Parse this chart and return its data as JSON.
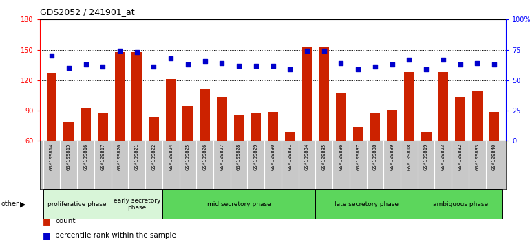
{
  "title": "GDS2052 / 241901_at",
  "samples": [
    "GSM109814",
    "GSM109815",
    "GSM109816",
    "GSM109817",
    "GSM109820",
    "GSM109821",
    "GSM109822",
    "GSM109824",
    "GSM109825",
    "GSM109826",
    "GSM109827",
    "GSM109828",
    "GSM109829",
    "GSM109830",
    "GSM109831",
    "GSM109834",
    "GSM109835",
    "GSM109836",
    "GSM109837",
    "GSM109838",
    "GSM109839",
    "GSM109818",
    "GSM109819",
    "GSM109823",
    "GSM109832",
    "GSM109833",
    "GSM109840"
  ],
  "counts": [
    127,
    79,
    92,
    87,
    148,
    148,
    84,
    121,
    95,
    112,
    103,
    86,
    88,
    89,
    69,
    153,
    153,
    108,
    74,
    87,
    91,
    128,
    69,
    128,
    103,
    110,
    89
  ],
  "percentiles": [
    70,
    60,
    63,
    61,
    74,
    73,
    61,
    68,
    63,
    66,
    64,
    62,
    62,
    62,
    59,
    74,
    74,
    64,
    59,
    61,
    63,
    67,
    59,
    67,
    63,
    64,
    63
  ],
  "phases": [
    {
      "label": "proliferative phase",
      "start": 0,
      "end": 4,
      "color": "#d8f5d8"
    },
    {
      "label": "early secretory\nphase",
      "start": 4,
      "end": 7,
      "color": "#d8f5d8"
    },
    {
      "label": "mid secretory phase",
      "start": 7,
      "end": 16,
      "color": "#5cd65c"
    },
    {
      "label": "late secretory phase",
      "start": 16,
      "end": 22,
      "color": "#5cd65c"
    },
    {
      "label": "ambiguous phase",
      "start": 22,
      "end": 27,
      "color": "#5cd65c"
    }
  ],
  "ylim_left": [
    60,
    180
  ],
  "ylim_right": [
    0,
    100
  ],
  "yticks_left": [
    60,
    90,
    120,
    150,
    180
  ],
  "yticks_right": [
    0,
    25,
    50,
    75,
    100
  ],
  "ytick_labels_right": [
    "0",
    "25",
    "50",
    "75",
    "100%"
  ],
  "bar_color": "#cc2200",
  "dot_color": "#0000cc",
  "xtick_bg": "#c8c8c8",
  "plot_bg": "#ffffff"
}
